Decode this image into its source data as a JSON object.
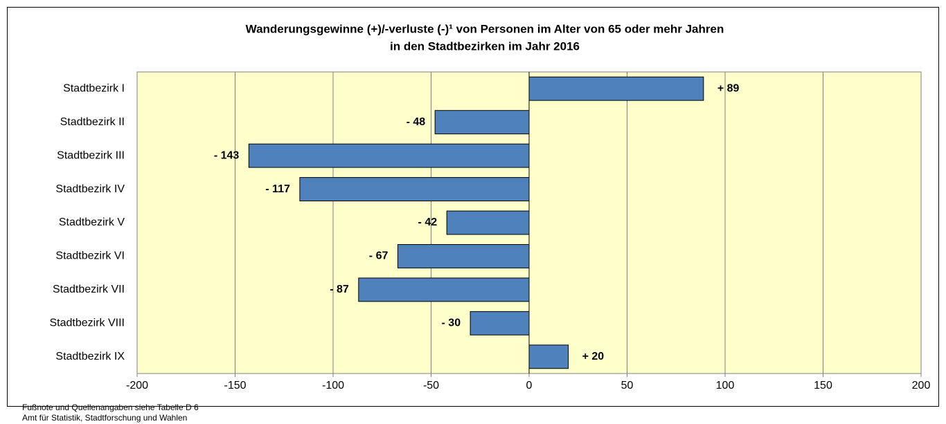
{
  "chart_data": {
    "type": "bar",
    "orientation": "horizontal",
    "title": [
      "Wanderungsgewinne (+)/-verluste (-)¹ von Personen im Alter von 65 oder mehr Jahren",
      "in den Stadtbezirken im Jahr 2016"
    ],
    "categories": [
      "Stadtbezirk I",
      "Stadtbezirk II",
      "Stadtbezirk III",
      "Stadtbezirk IV",
      "Stadtbezirk V",
      "Stadtbezirk VI",
      "Stadtbezirk VII",
      "Stadtbezirk VIII",
      "Stadtbezirk IX"
    ],
    "values": [
      89,
      -48,
      -143,
      -117,
      -42,
      -67,
      -87,
      -30,
      20
    ],
    "value_labels": [
      "+ 89",
      "- 48",
      "- 143",
      "- 117",
      "- 42",
      "- 67",
      "- 87",
      "- 30",
      "+ 20"
    ],
    "color": "#4f81bd",
    "xlim": [
      -200,
      200
    ],
    "xticks": [
      -200,
      -150,
      -100,
      -50,
      0,
      50,
      100,
      150,
      200
    ],
    "grid": true,
    "notes": [
      "Fußnote und Quellenangaben siehe Tabelle D 6",
      "Amt für Statistik, Stadtforschung und Wahlen"
    ]
  }
}
